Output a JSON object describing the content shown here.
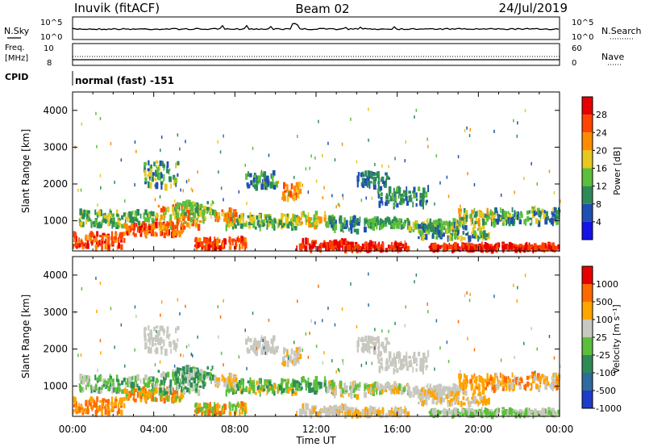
{
  "header": {
    "site": "Inuvik (fitACF)",
    "beam": "Beam 02",
    "date": "24/Jul/2019"
  },
  "panels": {
    "nsky_label": "N.Sky",
    "nsearch_label": "N.Search",
    "nsky_ticks": [
      "10^5",
      "10^0"
    ],
    "freq_label_1": "Freq.",
    "freq_label_2": "[MHz]",
    "freq_ticks": [
      "10",
      "8"
    ],
    "nave_label": "Nave",
    "nave_ticks": [
      "60",
      "0"
    ],
    "cpid_label": "CPID",
    "cpid_text": "normal (fast) -151"
  },
  "chart_data": [
    {
      "type": "heatmap",
      "name": "power",
      "ylabel": "Slant Range [km]",
      "xlabel": "",
      "yticks": [
        1000,
        2000,
        3000,
        4000
      ],
      "ylim": [
        180,
        4500
      ],
      "colorbar_label": "Power [dB]",
      "colorbar_ticks": [
        "28",
        "24",
        "20",
        "16",
        "12",
        "8",
        "4"
      ],
      "colors": [
        "#1414e6",
        "#1e4fb4",
        "#2e8b57",
        "#5cbf3c",
        "#e6c81e",
        "#ff8c00",
        "#ff4500",
        "#e60000"
      ]
    },
    {
      "type": "heatmap",
      "name": "velocity",
      "ylabel": "Slant Range [km]",
      "xlabel": "Time UT",
      "xticks": [
        "00:00",
        "04:00",
        "08:00",
        "12:00",
        "16:00",
        "20:00",
        "00:00"
      ],
      "yticks": [
        1000,
        2000,
        3000,
        4000
      ],
      "ylim": [
        180,
        4500
      ],
      "colorbar_label": "Velocity [m s⁻¹]",
      "colorbar_ticks": [
        "1000",
        "500",
        "100",
        "25",
        "-25",
        "-100",
        "-500",
        "-1000"
      ],
      "colors": [
        "#1e3cc8",
        "#2e6b9e",
        "#2e8b57",
        "#5cbf3c",
        "#c8c8c0",
        "#ffa500",
        "#ff6a00",
        "#e60000"
      ]
    }
  ]
}
